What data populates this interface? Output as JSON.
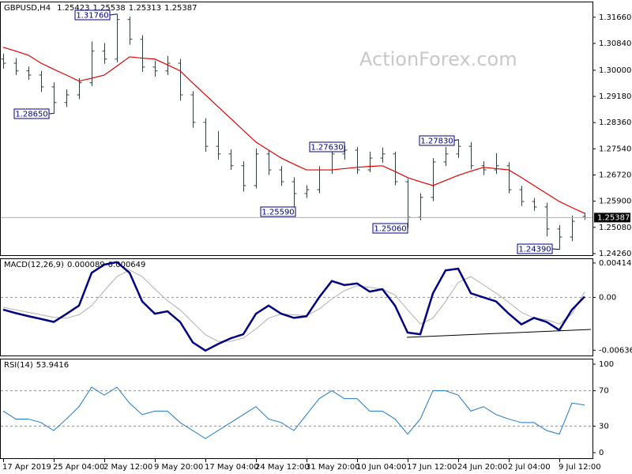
{
  "chart_data": [
    {
      "type": "ohlc",
      "symbol": "GBPUSD,H4",
      "watermark": "ActionForex.com",
      "color": "#2f3f3f",
      "categories": [
        "17 Apr 2019",
        null,
        null,
        null,
        "25 Apr 04:00",
        null,
        null,
        null,
        "2 May 12:00",
        null,
        null,
        null,
        "9 May 20:00",
        null,
        null,
        null,
        "17 May 04:00",
        null,
        null,
        null,
        "24 May 12:00",
        null,
        null,
        null,
        "31 May 20:00",
        null,
        null,
        null,
        "10 Jun 04:00",
        null,
        null,
        null,
        "17 Jun 12:00",
        null,
        null,
        null,
        "24 Jun 20:00",
        null,
        null,
        null,
        "2 Jul 04:00",
        null,
        null,
        null,
        "9 Jul 12:00",
        null,
        null
      ],
      "open": [
        1.3035,
        1.3022,
        1.2998,
        1.2985,
        1.2948,
        1.2899,
        1.2923,
        1.2961,
        1.306,
        1.3035,
        1.3159,
        1.3097,
        1.301,
        1.2998,
        1.3022,
        1.2923,
        1.2837,
        1.2762,
        1.2738,
        1.2701,
        1.2639,
        1.2738,
        1.2688,
        1.2651,
        1.2614,
        1.2626,
        1.2688,
        1.2738,
        1.275,
        1.2688,
        1.2725,
        1.2738,
        1.2651,
        1.254,
        1.2602,
        1.2713,
        1.2738,
        1.2762,
        1.2701,
        1.2688,
        1.2701,
        1.2626,
        1.2589,
        1.2572,
        1.2503,
        1.2478,
        1.25423
      ],
      "high": [
        1.3052,
        1.3038,
        1.3012,
        1.2998,
        1.2962,
        1.294,
        1.2975,
        1.309,
        1.3085,
        1.3176,
        1.3168,
        1.311,
        1.303,
        1.3045,
        1.3035,
        1.2935,
        1.285,
        1.281,
        1.2752,
        1.2715,
        1.2755,
        1.275,
        1.27,
        1.2665,
        1.264,
        1.27,
        1.2755,
        1.2763,
        1.276,
        1.2745,
        1.2758,
        1.2745,
        1.266,
        1.2615,
        1.2725,
        1.276,
        1.2783,
        1.2775,
        1.2715,
        1.274,
        1.2712,
        1.2638,
        1.26,
        1.2585,
        1.2515,
        1.2545,
        1.25538
      ],
      "low": [
        1.3005,
        1.2985,
        1.297,
        1.2932,
        1.2865,
        1.2885,
        1.291,
        1.295,
        1.302,
        1.3025,
        1.308,
        1.2995,
        1.298,
        1.2985,
        1.2905,
        1.282,
        1.2745,
        1.272,
        1.2688,
        1.262,
        1.263,
        1.2672,
        1.2638,
        1.2559,
        1.26,
        1.2615,
        1.2675,
        1.272,
        1.2675,
        1.268,
        1.271,
        1.264,
        1.2506,
        1.253,
        1.259,
        1.27,
        1.2725,
        1.269,
        1.2672,
        1.2675,
        1.2615,
        1.2575,
        1.256,
        1.248,
        1.2439,
        1.2465,
        1.25313
      ],
      "close": [
        1.3022,
        1.2998,
        1.2985,
        1.2948,
        1.2899,
        1.2923,
        1.2961,
        1.306,
        1.3035,
        1.3159,
        1.3097,
        1.301,
        1.2998,
        1.3022,
        1.2923,
        1.2837,
        1.2762,
        1.2738,
        1.2701,
        1.2639,
        1.2738,
        1.2688,
        1.2651,
        1.2614,
        1.2626,
        1.2688,
        1.2738,
        1.275,
        1.2688,
        1.2725,
        1.2738,
        1.2651,
        1.254,
        1.2602,
        1.2713,
        1.2738,
        1.2762,
        1.2701,
        1.2688,
        1.2701,
        1.2626,
        1.2589,
        1.2572,
        1.2503,
        1.2478,
        1.2527,
        1.25387
      ],
      "ma": {
        "color": "#e00000",
        "values": [
          1.3072,
          1.306,
          1.3047,
          1.3022,
          1.3003,
          1.2985,
          1.2966,
          1.2975,
          1.2985,
          1.3013,
          1.3042,
          1.3038,
          1.3035,
          1.3017,
          1.2998,
          1.296,
          1.2923,
          1.2886,
          1.2849,
          1.2812,
          1.2775,
          1.275,
          1.2725,
          1.2706,
          1.2688,
          1.2688,
          1.2688,
          1.2692,
          1.2696,
          1.2699,
          1.2701,
          1.2683,
          1.2664,
          1.2651,
          1.2639,
          1.2655,
          1.2671,
          1.2684,
          1.2696,
          1.2692,
          1.2688,
          1.2664,
          1.2639,
          1.2614,
          1.2589,
          1.257,
          1.2552
        ]
      },
      "annotations": [
        {
          "value": 1.3176,
          "label": "1.31760"
        },
        {
          "value": 1.2865,
          "label": "1.28650"
        },
        {
          "value": 1.2763,
          "label": "1.27630"
        },
        {
          "value": 1.2559,
          "label": "1.25590"
        },
        {
          "value": 1.2783,
          "label": "1.27830"
        },
        {
          "value": 1.2506,
          "label": "1.25060"
        },
        {
          "value": 1.2439,
          "label": "1.24390"
        }
      ],
      "ylim": [
        1.2421,
        1.3215
      ],
      "yticks": [
        {
          "value": 1.3166,
          "label": "1.31660"
        },
        {
          "value": 1.3084,
          "label": "1.30840"
        },
        {
          "value": 1.3,
          "label": "1.30000"
        },
        {
          "value": 1.2918,
          "label": "1.29180"
        },
        {
          "value": 1.2836,
          "label": "1.28360"
        },
        {
          "value": 1.2754,
          "label": "1.27540"
        },
        {
          "value": 1.2672,
          "label": "1.26720"
        },
        {
          "value": 1.259,
          "label": "1.25900"
        },
        {
          "value": 1.2508,
          "label": "1.25080"
        },
        {
          "value": 1.2426,
          "label": "1.24260"
        }
      ]
    },
    {
      "type": "line",
      "title": "MACD(12,26,9)",
      "grid": true,
      "series": [
        {
          "color": "#000080",
          "values": [
            -0.00148,
            -0.0019,
            -0.00227,
            -0.0026,
            -0.00296,
            -0.002,
            -0.00099,
            0.00296,
            0.00394,
            0.00424,
            0.00296,
            -0.00049,
            -0.00197,
            -0.00168,
            -0.00296,
            -0.00542,
            -0.00641,
            -0.00562,
            -0.00493,
            -0.00444,
            -0.00197,
            -0.00099,
            -0.00197,
            -0.00247,
            -0.00227,
            0,
            0.00197,
            0.00148,
            0.00168,
            0.00069,
            0.00099,
            -0.00099,
            -0.00424,
            -0.00444,
            0.00049,
            0.00325,
            0.00345,
            0.00049,
            0,
            -0.00049,
            -0.00197,
            -0.00325,
            -0.00247,
            -0.00296,
            -0.00394,
            -0.00148,
            8.9e-05
          ]
        },
        {
          "color": "#b0b0b0",
          "values": [
            -0.0012,
            -0.0015,
            -0.0018,
            -0.0021,
            -0.0024,
            -0.0025,
            -0.0021,
            -0.001,
            0.0008,
            0.0025,
            0.0033,
            0.0025,
            0.001,
            -0.0004,
            -0.0015,
            -0.003,
            -0.0045,
            -0.0053,
            -0.0053,
            -0.0049,
            -0.0038,
            -0.0025,
            -0.002,
            -0.0021,
            -0.0022,
            -0.0014,
            -0.0002,
            0.0008,
            0.0014,
            0.0012,
            0.001,
            0.0003,
            -0.0015,
            -0.0032,
            -0.0025,
            -0.0005,
            0.0018,
            0.0025,
            0.0015,
            0.0005,
            -0.0006,
            -0.0018,
            -0.0025,
            -0.0027,
            -0.0032,
            -0.002,
            0.000649
          ]
        }
      ],
      "ylim": [
        -0.007,
        0.0047
      ],
      "yticks": [
        0.004141,
        {
          "value": 0,
          "label": "0.00"
        },
        -0.006365
      ]
    },
    {
      "type": "line",
      "title": "RSI(14)",
      "grid": true,
      "series": [
        {
          "color": "#1e78c8",
          "values": [
            47,
            38,
            38,
            34,
            25,
            38,
            52,
            74,
            65,
            74,
            56,
            43,
            47,
            47,
            34,
            25,
            16,
            25,
            34,
            43,
            52,
            38,
            34,
            25,
            43,
            61,
            70,
            61,
            61,
            47,
            47,
            38,
            21,
            38,
            70,
            70,
            65,
            47,
            52,
            43,
            38,
            34,
            34,
            25,
            21,
            56,
            53.9416
          ]
        }
      ],
      "ylim": [
        -6.25,
        106.25
      ],
      "yticks": [
        100,
        70,
        30,
        0
      ]
    }
  ]
}
